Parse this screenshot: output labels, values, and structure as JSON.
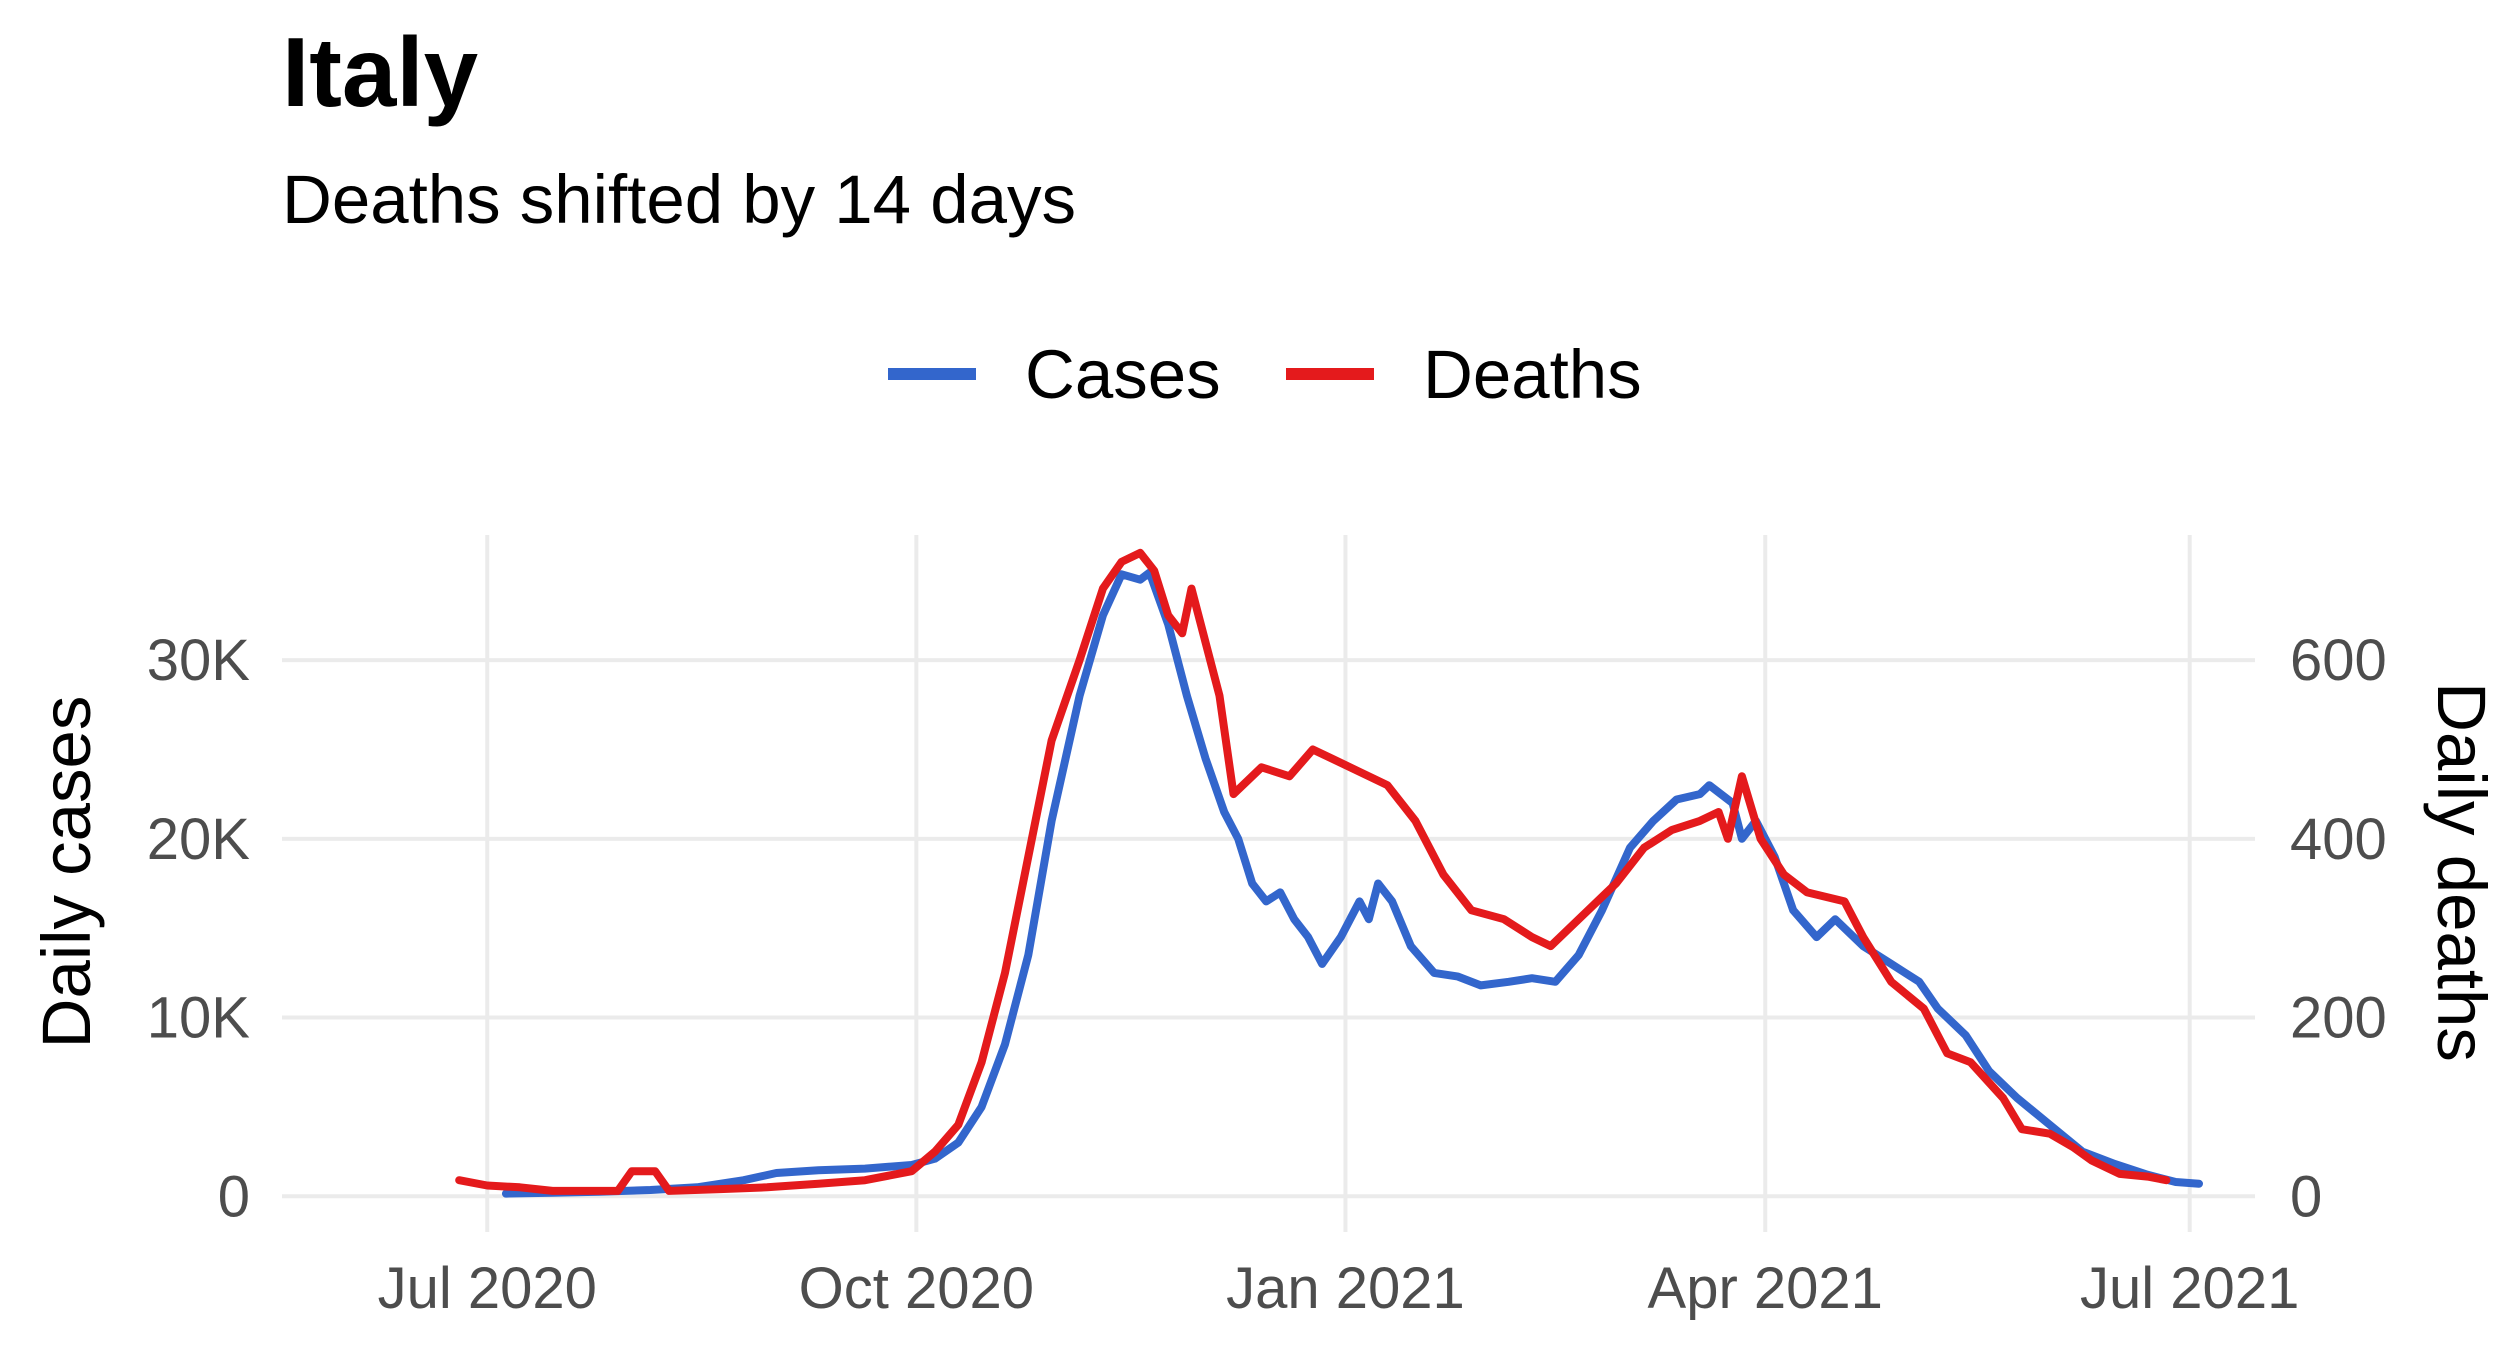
{
  "chart_data": {
    "type": "line",
    "title": "Italy",
    "subtitle": "Deaths shifted by 14 days",
    "ylabel": "Daily cases",
    "y2label": "Daily deaths",
    "xlim": [
      "2020-05-18",
      "2021-07-15"
    ],
    "ylim": [
      -2000,
      37000
    ],
    "y2lim": [
      -40,
      740
    ],
    "x_ticks": [
      {
        "date": "2020-07-01",
        "label": "Jul 2020"
      },
      {
        "date": "2020-10-01",
        "label": "Oct 2020"
      },
      {
        "date": "2021-01-01",
        "label": "Jan 2021"
      },
      {
        "date": "2021-04-01",
        "label": "Apr 2021"
      },
      {
        "date": "2021-07-01",
        "label": "Jul 2021"
      }
    ],
    "y_ticks": [
      {
        "value": 0,
        "label": "0"
      },
      {
        "value": 10000,
        "label": "10K"
      },
      {
        "value": 20000,
        "label": "20K"
      },
      {
        "value": 30000,
        "label": "30K"
      }
    ],
    "y2_ticks": [
      {
        "value": 0,
        "label": "0"
      },
      {
        "value": 200,
        "label": "200"
      },
      {
        "value": 400,
        "label": "400"
      },
      {
        "value": 600,
        "label": "600"
      }
    ],
    "grid": true,
    "legend_position": "top",
    "series": [
      {
        "name": "Cases",
        "axis": "left",
        "color": "#3366cc",
        "points": [
          [
            "2020-07-05",
            150
          ],
          [
            "2020-07-15",
            200
          ],
          [
            "2020-07-25",
            250
          ],
          [
            "2020-08-05",
            350
          ],
          [
            "2020-08-15",
            500
          ],
          [
            "2020-08-25",
            900
          ],
          [
            "2020-09-01",
            1300
          ],
          [
            "2020-09-10",
            1450
          ],
          [
            "2020-09-20",
            1550
          ],
          [
            "2020-09-30",
            1750
          ],
          [
            "2020-10-05",
            2100
          ],
          [
            "2020-10-10",
            3000
          ],
          [
            "2020-10-15",
            5000
          ],
          [
            "2020-10-20",
            8500
          ],
          [
            "2020-10-25",
            13500
          ],
          [
            "2020-10-30",
            21000
          ],
          [
            "2020-11-05",
            28000
          ],
          [
            "2020-11-10",
            32500
          ],
          [
            "2020-11-14",
            34800
          ],
          [
            "2020-11-18",
            34500
          ],
          [
            "2020-11-20",
            34900
          ],
          [
            "2020-11-24",
            32000
          ],
          [
            "2020-11-28",
            28000
          ],
          [
            "2020-12-02",
            24500
          ],
          [
            "2020-12-06",
            21500
          ],
          [
            "2020-12-09",
            20000
          ],
          [
            "2020-12-12",
            17500
          ],
          [
            "2020-12-15",
            16500
          ],
          [
            "2020-12-18",
            17000
          ],
          [
            "2020-12-21",
            15500
          ],
          [
            "2020-12-24",
            14500
          ],
          [
            "2020-12-27",
            13000
          ],
          [
            "2020-12-31",
            14500
          ],
          [
            "2021-01-04",
            16500
          ],
          [
            "2021-01-06",
            15500
          ],
          [
            "2021-01-08",
            17500
          ],
          [
            "2021-01-11",
            16500
          ],
          [
            "2021-01-15",
            14000
          ],
          [
            "2021-01-20",
            12500
          ],
          [
            "2021-01-25",
            12300
          ],
          [
            "2021-01-30",
            11800
          ],
          [
            "2021-02-05",
            12000
          ],
          [
            "2021-02-10",
            12200
          ],
          [
            "2021-02-15",
            12000
          ],
          [
            "2021-02-20",
            13500
          ],
          [
            "2021-02-25",
            16000
          ],
          [
            "2021-03-03",
            19500
          ],
          [
            "2021-03-08",
            21000
          ],
          [
            "2021-03-13",
            22200
          ],
          [
            "2021-03-18",
            22500
          ],
          [
            "2021-03-20",
            23000
          ],
          [
            "2021-03-25",
            22000
          ],
          [
            "2021-03-27",
            20000
          ],
          [
            "2021-03-30",
            21000
          ],
          [
            "2021-04-03",
            19000
          ],
          [
            "2021-04-07",
            16000
          ],
          [
            "2021-04-12",
            14500
          ],
          [
            "2021-04-16",
            15500
          ],
          [
            "2021-04-22",
            14000
          ],
          [
            "2021-04-28",
            13000
          ],
          [
            "2021-05-04",
            12000
          ],
          [
            "2021-05-08",
            10500
          ],
          [
            "2021-05-14",
            9000
          ],
          [
            "2021-05-19",
            7000
          ],
          [
            "2021-05-25",
            5500
          ],
          [
            "2021-06-01",
            4000
          ],
          [
            "2021-06-08",
            2500
          ],
          [
            "2021-06-15",
            1800
          ],
          [
            "2021-06-22",
            1200
          ],
          [
            "2021-06-28",
            800
          ],
          [
            "2021-07-03",
            700
          ]
        ]
      },
      {
        "name": "Deaths",
        "axis": "right",
        "color": "#e41a1c",
        "points": [
          [
            "2020-06-25",
            18
          ],
          [
            "2020-07-01",
            12
          ],
          [
            "2020-07-08",
            10
          ],
          [
            "2020-07-15",
            6
          ],
          [
            "2020-07-22",
            6
          ],
          [
            "2020-07-29",
            6
          ],
          [
            "2020-08-01",
            28
          ],
          [
            "2020-08-06",
            28
          ],
          [
            "2020-08-09",
            6
          ],
          [
            "2020-08-20",
            8
          ],
          [
            "2020-08-30",
            10
          ],
          [
            "2020-09-10",
            14
          ],
          [
            "2020-09-20",
            18
          ],
          [
            "2020-09-30",
            28
          ],
          [
            "2020-10-05",
            50
          ],
          [
            "2020-10-10",
            80
          ],
          [
            "2020-10-15",
            150
          ],
          [
            "2020-10-20",
            250
          ],
          [
            "2020-10-25",
            380
          ],
          [
            "2020-10-30",
            510
          ],
          [
            "2020-11-05",
            600
          ],
          [
            "2020-11-10",
            680
          ],
          [
            "2020-11-14",
            710
          ],
          [
            "2020-11-18",
            720
          ],
          [
            "2020-11-21",
            700
          ],
          [
            "2020-11-24",
            650
          ],
          [
            "2020-11-27",
            630
          ],
          [
            "2020-11-29",
            680
          ],
          [
            "2020-12-02",
            620
          ],
          [
            "2020-12-05",
            560
          ],
          [
            "2020-12-08",
            450
          ],
          [
            "2020-12-14",
            480
          ],
          [
            "2020-12-20",
            470
          ],
          [
            "2020-12-25",
            500
          ],
          [
            "2020-12-29",
            490
          ],
          [
            "2021-01-04",
            475
          ],
          [
            "2021-01-10",
            460
          ],
          [
            "2021-01-16",
            420
          ],
          [
            "2021-01-22",
            360
          ],
          [
            "2021-01-28",
            320
          ],
          [
            "2021-02-04",
            310
          ],
          [
            "2021-02-10",
            290
          ],
          [
            "2021-02-14",
            280
          ],
          [
            "2021-02-20",
            310
          ],
          [
            "2021-02-28",
            350
          ],
          [
            "2021-03-06",
            390
          ],
          [
            "2021-03-12",
            410
          ],
          [
            "2021-03-18",
            420
          ],
          [
            "2021-03-22",
            430
          ],
          [
            "2021-03-24",
            400
          ],
          [
            "2021-03-27",
            470
          ],
          [
            "2021-03-31",
            400
          ],
          [
            "2021-04-05",
            360
          ],
          [
            "2021-04-10",
            340
          ],
          [
            "2021-04-18",
            330
          ],
          [
            "2021-04-22",
            290
          ],
          [
            "2021-04-28",
            240
          ],
          [
            "2021-05-05",
            210
          ],
          [
            "2021-05-10",
            160
          ],
          [
            "2021-05-15",
            150
          ],
          [
            "2021-05-22",
            110
          ],
          [
            "2021-05-26",
            75
          ],
          [
            "2021-06-01",
            70
          ],
          [
            "2021-06-06",
            55
          ],
          [
            "2021-06-10",
            40
          ],
          [
            "2021-06-16",
            25
          ],
          [
            "2021-06-22",
            22
          ],
          [
            "2021-06-26",
            18
          ]
        ]
      }
    ]
  }
}
